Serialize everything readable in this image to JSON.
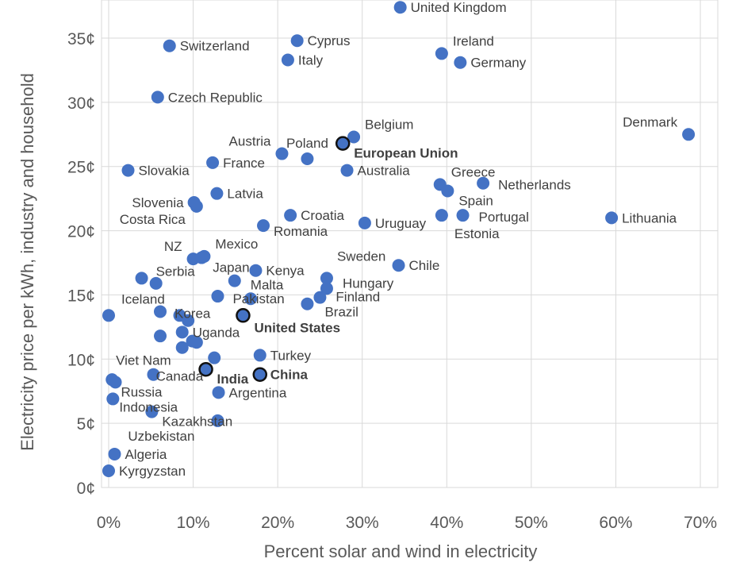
{
  "chart_data": {
    "type": "scatter",
    "title": "",
    "xlabel": "Percent solar and wind in electricity",
    "ylabel": "Electricity price per kWh, industry and household",
    "xlim": [
      0,
      70
    ],
    "ylim": [
      0,
      35
    ],
    "x_ticks": [
      "0%",
      "10%",
      "20%",
      "30%",
      "40%",
      "50%",
      "60%",
      "70%"
    ],
    "y_ticks": [
      "0¢",
      "5¢",
      "10¢",
      "15¢",
      "20¢",
      "25¢",
      "30¢",
      "35¢"
    ],
    "grid": true,
    "colors": {
      "point": "#4472c4",
      "highlight_outline": "#111111",
      "grid": "#d9d9d9"
    },
    "points": [
      {
        "label": "United Kingdom",
        "x": 34.5,
        "y": 37.4,
        "pos": "right"
      },
      {
        "label": "Switzerland",
        "x": 7.2,
        "y": 34.4,
        "pos": "right"
      },
      {
        "label": "Cyprus",
        "x": 22.3,
        "y": 34.8,
        "pos": "right"
      },
      {
        "label": "Italy",
        "x": 21.2,
        "y": 33.3,
        "pos": "right"
      },
      {
        "label": "Ireland",
        "x": 39.4,
        "y": 33.8,
        "pos": "upright"
      },
      {
        "label": "Germany",
        "x": 41.6,
        "y": 33.1,
        "pos": "right"
      },
      {
        "label": "Czech Republic",
        "x": 5.8,
        "y": 30.4,
        "pos": "right"
      },
      {
        "label": "Belgium",
        "x": 29.0,
        "y": 27.3,
        "pos": "upright"
      },
      {
        "label": "Denmark",
        "x": 68.6,
        "y": 27.5,
        "pos": "upleft"
      },
      {
        "label": "European Union",
        "x": 27.7,
        "y": 26.8,
        "pos": "downright",
        "highlight": true
      },
      {
        "label": "Austria",
        "x": 20.5,
        "y": 26.0,
        "pos": "upleft"
      },
      {
        "label": "Poland",
        "x": 23.5,
        "y": 25.6,
        "pos": "above"
      },
      {
        "label": "France",
        "x": 12.3,
        "y": 25.3,
        "pos": "right"
      },
      {
        "label": "Slovakia",
        "x": 2.3,
        "y": 24.7,
        "pos": "right"
      },
      {
        "label": "Australia",
        "x": 28.2,
        "y": 24.7,
        "pos": "right"
      },
      {
        "label": "Greece",
        "x": 39.2,
        "y": 23.6,
        "pos": "upright"
      },
      {
        "label": "Spain",
        "x": 40.1,
        "y": 23.1,
        "pos": "downright"
      },
      {
        "label": "Netherlands",
        "x": 44.3,
        "y": 23.7,
        "pos": "right"
      },
      {
        "label": "Slovenia",
        "x": 10.1,
        "y": 22.2,
        "pos": "left"
      },
      {
        "label": "Costa Rica",
        "x": 10.4,
        "y": 21.9,
        "pos": "downleft"
      },
      {
        "label": "Latvia",
        "x": 12.8,
        "y": 22.9,
        "pos": "right"
      },
      {
        "label": "Croatia",
        "x": 21.5,
        "y": 21.2,
        "pos": "right"
      },
      {
        "label": "Romania",
        "x": 18.3,
        "y": 20.4,
        "pos": "right"
      },
      {
        "label": "Uruguay",
        "x": 30.3,
        "y": 20.6,
        "pos": "right"
      },
      {
        "label": "Estonia",
        "x": 39.4,
        "y": 21.2,
        "pos": "downright"
      },
      {
        "label": "Portugal",
        "x": 41.9,
        "y": 21.2,
        "pos": "right"
      },
      {
        "label": "Lithuania",
        "x": 59.5,
        "y": 21.0,
        "pos": "right"
      },
      {
        "label": "NZ",
        "x": 10.0,
        "y": 17.8,
        "pos": "upleft"
      },
      {
        "label": "Mexico",
        "x": 11.3,
        "y": 18.0,
        "pos": "upright"
      },
      {
        "label": "Japan",
        "x": 11.0,
        "y": 17.9,
        "pos": "downright"
      },
      {
        "label": "Kenya",
        "x": 17.4,
        "y": 16.9,
        "pos": "right"
      },
      {
        "label": "Sweden",
        "x": 25.8,
        "y": 16.3,
        "pos": "upright"
      },
      {
        "label": "Hungary",
        "x": 25.8,
        "y": 15.5,
        "pos": "right"
      },
      {
        "label": "Finland",
        "x": 25.0,
        "y": 14.8,
        "pos": "right"
      },
      {
        "label": "Brazil",
        "x": 23.5,
        "y": 14.3,
        "pos": "right"
      },
      {
        "label": "Chile",
        "x": 34.3,
        "y": 17.3,
        "pos": "right"
      },
      {
        "label": "Serbia",
        "x": 3.9,
        "y": 16.3,
        "pos": "upright"
      },
      {
        "label": "",
        "x": 5.6,
        "y": 15.9
      },
      {
        "label": "Malta",
        "x": 14.9,
        "y": 16.1,
        "pos": "downright"
      },
      {
        "label": "Pakistan",
        "x": 12.9,
        "y": 14.9,
        "pos": "right"
      },
      {
        "label": "",
        "x": 16.8,
        "y": 14.7
      },
      {
        "label": "Iceland",
        "x": 0.0,
        "y": 13.4,
        "pos": "upright"
      },
      {
        "label": "Korea",
        "x": 6.1,
        "y": 13.7,
        "pos": "right"
      },
      {
        "label": "",
        "x": 8.4,
        "y": 13.4
      },
      {
        "label": "",
        "x": 9.4,
        "y": 13.0
      },
      {
        "label": "United States",
        "x": 15.9,
        "y": 13.4,
        "pos": "downright",
        "highlight": true
      },
      {
        "label": "Uganda",
        "x": 8.7,
        "y": 12.1,
        "pos": "right"
      },
      {
        "label": "",
        "x": 6.1,
        "y": 11.8
      },
      {
        "label": "",
        "x": 9.9,
        "y": 11.4
      },
      {
        "label": "",
        "x": 10.4,
        "y": 11.3
      },
      {
        "label": "Viet Nam",
        "x": 8.7,
        "y": 10.9,
        "pos": "downleft"
      },
      {
        "label": "Canada",
        "x": 12.5,
        "y": 10.1,
        "pos": "upleft"
      },
      {
        "label": "Turkey",
        "x": 17.9,
        "y": 10.3,
        "pos": "right"
      },
      {
        "label": "India",
        "x": 11.5,
        "y": 9.2,
        "pos": "downright",
        "highlight": true
      },
      {
        "label": "China",
        "x": 17.9,
        "y": 8.8,
        "pos": "right",
        "highlight": true
      },
      {
        "label": "",
        "x": 5.3,
        "y": 8.8
      },
      {
        "label": "",
        "x": 0.4,
        "y": 8.4
      },
      {
        "label": "Russia",
        "x": 0.8,
        "y": 8.2,
        "pos": "downright"
      },
      {
        "label": "Indonesia",
        "x": 0.5,
        "y": 6.9,
        "pos": "right"
      },
      {
        "label": "Argentina",
        "x": 13.0,
        "y": 7.4,
        "pos": "right"
      },
      {
        "label": "Kazakhstan",
        "x": 5.1,
        "y": 5.9,
        "pos": "right"
      },
      {
        "label": "Uzbekistan",
        "x": 12.9,
        "y": 5.2,
        "pos": "left"
      },
      {
        "label": "Algeria",
        "x": 0.7,
        "y": 2.6,
        "pos": "right"
      },
      {
        "label": "Kyrgyzstan",
        "x": 0.0,
        "y": 1.3,
        "pos": "right"
      }
    ]
  }
}
